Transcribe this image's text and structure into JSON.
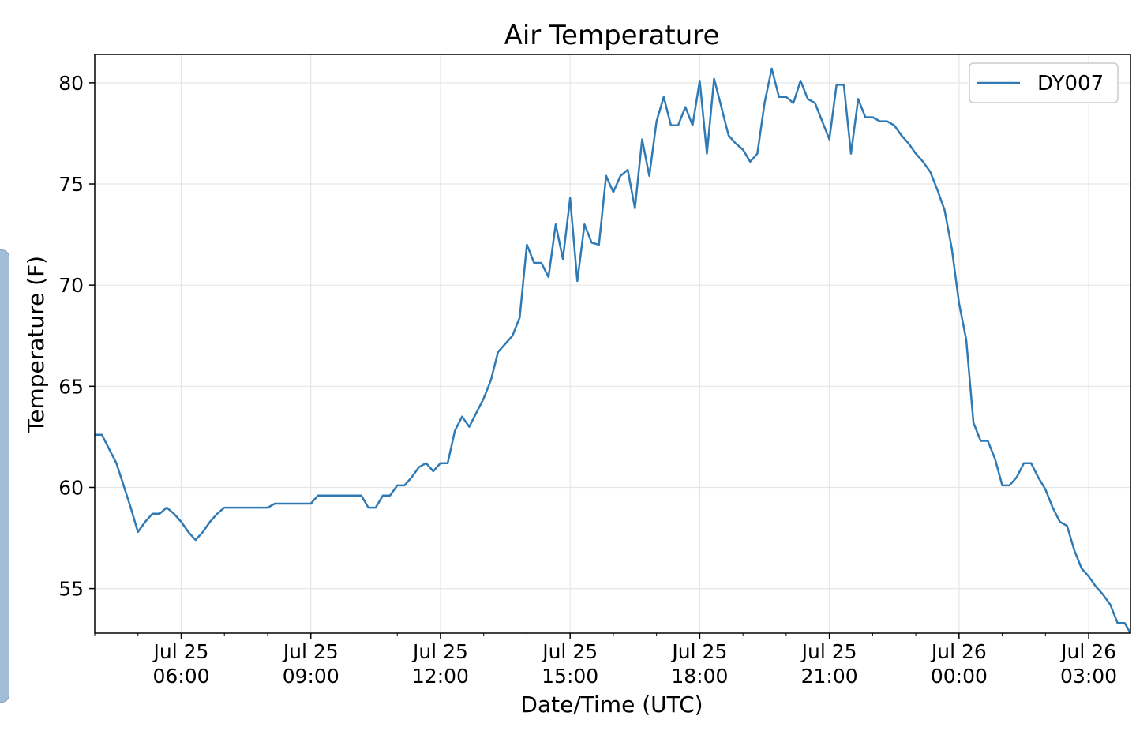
{
  "chart_data": {
    "type": "line",
    "title": "Air Temperature",
    "xlabel": "Date/Time (UTC)",
    "ylabel": "Temperature (F)",
    "xlim": [
      "2019-07-25T04:00",
      "2019-07-26T03:58"
    ],
    "ylim": [
      52.8,
      81.4
    ],
    "yticks": [
      55,
      60,
      65,
      70,
      75,
      80
    ],
    "xticks": [
      {
        "t": "2019-07-25T06:00",
        "line1": "Jul 25",
        "line2": "06:00"
      },
      {
        "t": "2019-07-25T09:00",
        "line1": "Jul 25",
        "line2": "09:00"
      },
      {
        "t": "2019-07-25T12:00",
        "line1": "Jul 25",
        "line2": "12:00"
      },
      {
        "t": "2019-07-25T15:00",
        "line1": "Jul 25",
        "line2": "15:00"
      },
      {
        "t": "2019-07-25T18:00",
        "line1": "Jul 25",
        "line2": "18:00"
      },
      {
        "t": "2019-07-25T21:00",
        "line1": "Jul 25",
        "line2": "21:00"
      },
      {
        "t": "2019-07-26T00:00",
        "line1": "Jul 26",
        "line2": "00:00"
      },
      {
        "t": "2019-07-26T03:00",
        "line1": "Jul 26",
        "line2": "03:00"
      }
    ],
    "grid": true,
    "legend": "top-right",
    "series": [
      {
        "name": "DY007",
        "color": "#2f7ab5",
        "points": [
          [
            "2019-07-25T04:00",
            62.6
          ],
          [
            "2019-07-25T04:10",
            62.6
          ],
          [
            "2019-07-25T04:20",
            61.9
          ],
          [
            "2019-07-25T04:30",
            61.2
          ],
          [
            "2019-07-25T04:40",
            60.1
          ],
          [
            "2019-07-25T04:50",
            59.0
          ],
          [
            "2019-07-25T05:00",
            57.8
          ],
          [
            "2019-07-25T05:10",
            58.3
          ],
          [
            "2019-07-25T05:20",
            58.7
          ],
          [
            "2019-07-25T05:30",
            58.7
          ],
          [
            "2019-07-25T05:40",
            59.0
          ],
          [
            "2019-07-25T05:50",
            58.7
          ],
          [
            "2019-07-25T06:00",
            58.3
          ],
          [
            "2019-07-25T06:10",
            57.8
          ],
          [
            "2019-07-25T06:20",
            57.4
          ],
          [
            "2019-07-25T06:30",
            57.8
          ],
          [
            "2019-07-25T06:40",
            58.3
          ],
          [
            "2019-07-25T06:50",
            58.7
          ],
          [
            "2019-07-25T07:00",
            59.0
          ],
          [
            "2019-07-25T07:20",
            59.0
          ],
          [
            "2019-07-25T07:40",
            59.0
          ],
          [
            "2019-07-25T08:00",
            59.0
          ],
          [
            "2019-07-25T08:10",
            59.2
          ],
          [
            "2019-07-25T08:30",
            59.2
          ],
          [
            "2019-07-25T08:50",
            59.2
          ],
          [
            "2019-07-25T09:00",
            59.2
          ],
          [
            "2019-07-25T09:10",
            59.6
          ],
          [
            "2019-07-25T09:30",
            59.6
          ],
          [
            "2019-07-25T09:50",
            59.6
          ],
          [
            "2019-07-25T10:10",
            59.6
          ],
          [
            "2019-07-25T10:20",
            59.0
          ],
          [
            "2019-07-25T10:30",
            59.0
          ],
          [
            "2019-07-25T10:40",
            59.6
          ],
          [
            "2019-07-25T10:50",
            59.6
          ],
          [
            "2019-07-25T11:00",
            60.1
          ],
          [
            "2019-07-25T11:10",
            60.1
          ],
          [
            "2019-07-25T11:20",
            60.5
          ],
          [
            "2019-07-25T11:30",
            61.0
          ],
          [
            "2019-07-25T11:40",
            61.2
          ],
          [
            "2019-07-25T11:50",
            60.8
          ],
          [
            "2019-07-25T12:00",
            61.2
          ],
          [
            "2019-07-25T12:10",
            61.2
          ],
          [
            "2019-07-25T12:20",
            62.8
          ],
          [
            "2019-07-25T12:30",
            63.5
          ],
          [
            "2019-07-25T12:40",
            63.0
          ],
          [
            "2019-07-25T12:50",
            63.7
          ],
          [
            "2019-07-25T13:00",
            64.4
          ],
          [
            "2019-07-25T13:10",
            65.3
          ],
          [
            "2019-07-25T13:20",
            66.7
          ],
          [
            "2019-07-25T13:30",
            67.1
          ],
          [
            "2019-07-25T13:40",
            67.5
          ],
          [
            "2019-07-25T13:50",
            68.4
          ],
          [
            "2019-07-25T14:00",
            72.0
          ],
          [
            "2019-07-25T14:10",
            71.1
          ],
          [
            "2019-07-25T14:20",
            71.1
          ],
          [
            "2019-07-25T14:30",
            70.4
          ],
          [
            "2019-07-25T14:40",
            73.0
          ],
          [
            "2019-07-25T14:50",
            71.3
          ],
          [
            "2019-07-25T15:00",
            74.3
          ],
          [
            "2019-07-25T15:10",
            70.2
          ],
          [
            "2019-07-25T15:20",
            73.0
          ],
          [
            "2019-07-25T15:30",
            72.1
          ],
          [
            "2019-07-25T15:40",
            72.0
          ],
          [
            "2019-07-25T15:50",
            75.4
          ],
          [
            "2019-07-25T16:00",
            74.6
          ],
          [
            "2019-07-25T16:10",
            75.4
          ],
          [
            "2019-07-25T16:20",
            75.7
          ],
          [
            "2019-07-25T16:30",
            73.8
          ],
          [
            "2019-07-25T16:40",
            77.2
          ],
          [
            "2019-07-25T16:50",
            75.4
          ],
          [
            "2019-07-25T17:00",
            78.1
          ],
          [
            "2019-07-25T17:10",
            79.3
          ],
          [
            "2019-07-25T17:20",
            77.9
          ],
          [
            "2019-07-25T17:30",
            77.9
          ],
          [
            "2019-07-25T17:40",
            78.8
          ],
          [
            "2019-07-25T17:50",
            77.9
          ],
          [
            "2019-07-25T18:00",
            80.1
          ],
          [
            "2019-07-25T18:10",
            76.5
          ],
          [
            "2019-07-25T18:20",
            80.2
          ],
          [
            "2019-07-25T18:30",
            78.8
          ],
          [
            "2019-07-25T18:40",
            77.4
          ],
          [
            "2019-07-25T18:50",
            77.0
          ],
          [
            "2019-07-25T19:00",
            76.7
          ],
          [
            "2019-07-25T19:10",
            76.1
          ],
          [
            "2019-07-25T19:20",
            76.5
          ],
          [
            "2019-07-25T19:30",
            79.0
          ],
          [
            "2019-07-25T19:40",
            80.7
          ],
          [
            "2019-07-25T19:50",
            79.3
          ],
          [
            "2019-07-25T20:00",
            79.3
          ],
          [
            "2019-07-25T20:10",
            79.0
          ],
          [
            "2019-07-25T20:20",
            80.1
          ],
          [
            "2019-07-25T20:30",
            79.2
          ],
          [
            "2019-07-25T20:40",
            79.0
          ],
          [
            "2019-07-25T20:50",
            78.1
          ],
          [
            "2019-07-25T21:00",
            77.2
          ],
          [
            "2019-07-25T21:10",
            79.9
          ],
          [
            "2019-07-25T21:20",
            79.9
          ],
          [
            "2019-07-25T21:30",
            76.5
          ],
          [
            "2019-07-25T21:40",
            79.2
          ],
          [
            "2019-07-25T21:50",
            78.3
          ],
          [
            "2019-07-25T22:00",
            78.3
          ],
          [
            "2019-07-25T22:10",
            78.1
          ],
          [
            "2019-07-25T22:20",
            78.1
          ],
          [
            "2019-07-25T22:30",
            77.9
          ],
          [
            "2019-07-25T22:40",
            77.4
          ],
          [
            "2019-07-25T22:50",
            77.0
          ],
          [
            "2019-07-25T23:00",
            76.5
          ],
          [
            "2019-07-25T23:10",
            76.1
          ],
          [
            "2019-07-25T23:20",
            75.6
          ],
          [
            "2019-07-25T23:30",
            74.7
          ],
          [
            "2019-07-25T23:40",
            73.7
          ],
          [
            "2019-07-25T23:50",
            71.8
          ],
          [
            "2019-07-26T00:00",
            69.1
          ],
          [
            "2019-07-26T00:10",
            67.3
          ],
          [
            "2019-07-26T00:20",
            63.2
          ],
          [
            "2019-07-26T00:30",
            62.3
          ],
          [
            "2019-07-26T00:40",
            62.3
          ],
          [
            "2019-07-26T00:50",
            61.4
          ],
          [
            "2019-07-26T01:00",
            60.1
          ],
          [
            "2019-07-26T01:10",
            60.1
          ],
          [
            "2019-07-26T01:20",
            60.5
          ],
          [
            "2019-07-26T01:30",
            61.2
          ],
          [
            "2019-07-26T01:40",
            61.2
          ],
          [
            "2019-07-26T01:50",
            60.5
          ],
          [
            "2019-07-26T02:00",
            59.9
          ],
          [
            "2019-07-26T02:10",
            59.0
          ],
          [
            "2019-07-26T02:20",
            58.3
          ],
          [
            "2019-07-26T02:30",
            58.1
          ],
          [
            "2019-07-26T02:40",
            56.9
          ],
          [
            "2019-07-26T02:50",
            56.0
          ],
          [
            "2019-07-26T03:00",
            55.6
          ],
          [
            "2019-07-26T03:10",
            55.1
          ],
          [
            "2019-07-26T03:20",
            54.7
          ],
          [
            "2019-07-26T03:30",
            54.2
          ],
          [
            "2019-07-26T03:40",
            53.3
          ],
          [
            "2019-07-26T03:50",
            53.3
          ],
          [
            "2019-07-26T03:58",
            52.8
          ]
        ]
      }
    ]
  }
}
